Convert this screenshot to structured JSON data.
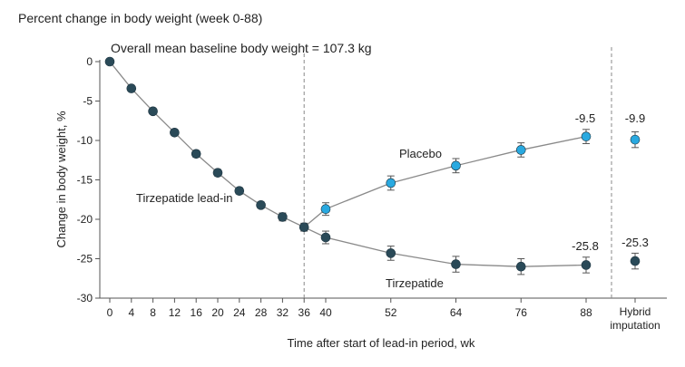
{
  "header": {
    "title": "Percent change in body weight (week 0-88)"
  },
  "chart_data": {
    "type": "line",
    "baseline_note": "Overall mean baseline body weight = 107.3 kg",
    "xlabel": "Time after start of lead-in period, wk",
    "ylabel": "Change in body weight, %",
    "ylim": [
      -30,
      0
    ],
    "y_ticks": [
      0,
      -5,
      -10,
      -15,
      -20,
      -25,
      -30
    ],
    "x_ticks": [
      0,
      4,
      8,
      12,
      16,
      20,
      24,
      28,
      32,
      36,
      40,
      52,
      64,
      76,
      88
    ],
    "x_tick_labels": [
      "0",
      "4",
      "8",
      "12",
      "16",
      "20",
      "24",
      "28",
      "32",
      "36",
      "40",
      "52",
      "64",
      "76",
      "88"
    ],
    "hybrid_label_line1": "Hybrid",
    "hybrid_label_line2": "imputation",
    "grid": false,
    "colors": {
      "tirzepatide": "#2a4a58",
      "placebo": "#29a9e0",
      "line": "#8a8a8a",
      "axis": "#555555"
    },
    "series": [
      {
        "name": "Tirzepatide lead-in",
        "color": "#2a4a58",
        "points": [
          {
            "x": 0,
            "y": 0,
            "err": 0
          },
          {
            "x": 4,
            "y": -3.4,
            "err": 0
          },
          {
            "x": 8,
            "y": -6.3,
            "err": 0
          },
          {
            "x": 12,
            "y": -9.0,
            "err": 0.3
          },
          {
            "x": 16,
            "y": -11.7,
            "err": 0.4
          },
          {
            "x": 20,
            "y": -14.1,
            "err": 0.4
          },
          {
            "x": 24,
            "y": -16.4,
            "err": 0.4
          },
          {
            "x": 28,
            "y": -18.2,
            "err": 0.4
          },
          {
            "x": 32,
            "y": -19.7,
            "err": 0.5
          },
          {
            "x": 36,
            "y": -21.0,
            "err": 0.5
          }
        ]
      },
      {
        "name": "Placebo",
        "color": "#29a9e0",
        "points": [
          {
            "x": 40,
            "y": -18.7,
            "err": 0.8
          },
          {
            "x": 52,
            "y": -15.4,
            "err": 0.9
          },
          {
            "x": 64,
            "y": -13.2,
            "err": 0.9
          },
          {
            "x": 76,
            "y": -11.2,
            "err": 0.9
          },
          {
            "x": 88,
            "y": -9.5,
            "err": 0.9
          }
        ],
        "hybrid": {
          "y": -9.9,
          "err": 1.0
        }
      },
      {
        "name": "Tirzepatide",
        "color": "#2a4a58",
        "points": [
          {
            "x": 40,
            "y": -22.3,
            "err": 0.8
          },
          {
            "x": 52,
            "y": -24.3,
            "err": 0.9
          },
          {
            "x": 64,
            "y": -25.7,
            "err": 1.0
          },
          {
            "x": 76,
            "y": -26.0,
            "err": 1.0
          },
          {
            "x": 88,
            "y": -25.8,
            "err": 1.0
          }
        ],
        "hybrid": {
          "y": -25.3,
          "err": 1.0
        }
      }
    ],
    "series_labels": {
      "lead_in": "Tirzepatide lead-in",
      "placebo": "Placebo",
      "tirzepatide": "Tirzepatide"
    },
    "annotations": {
      "placebo_88": "-9.5",
      "placebo_hybrid": "-9.9",
      "tirzepatide_88": "-25.8",
      "tirzepatide_hybrid": "-25.3"
    }
  }
}
